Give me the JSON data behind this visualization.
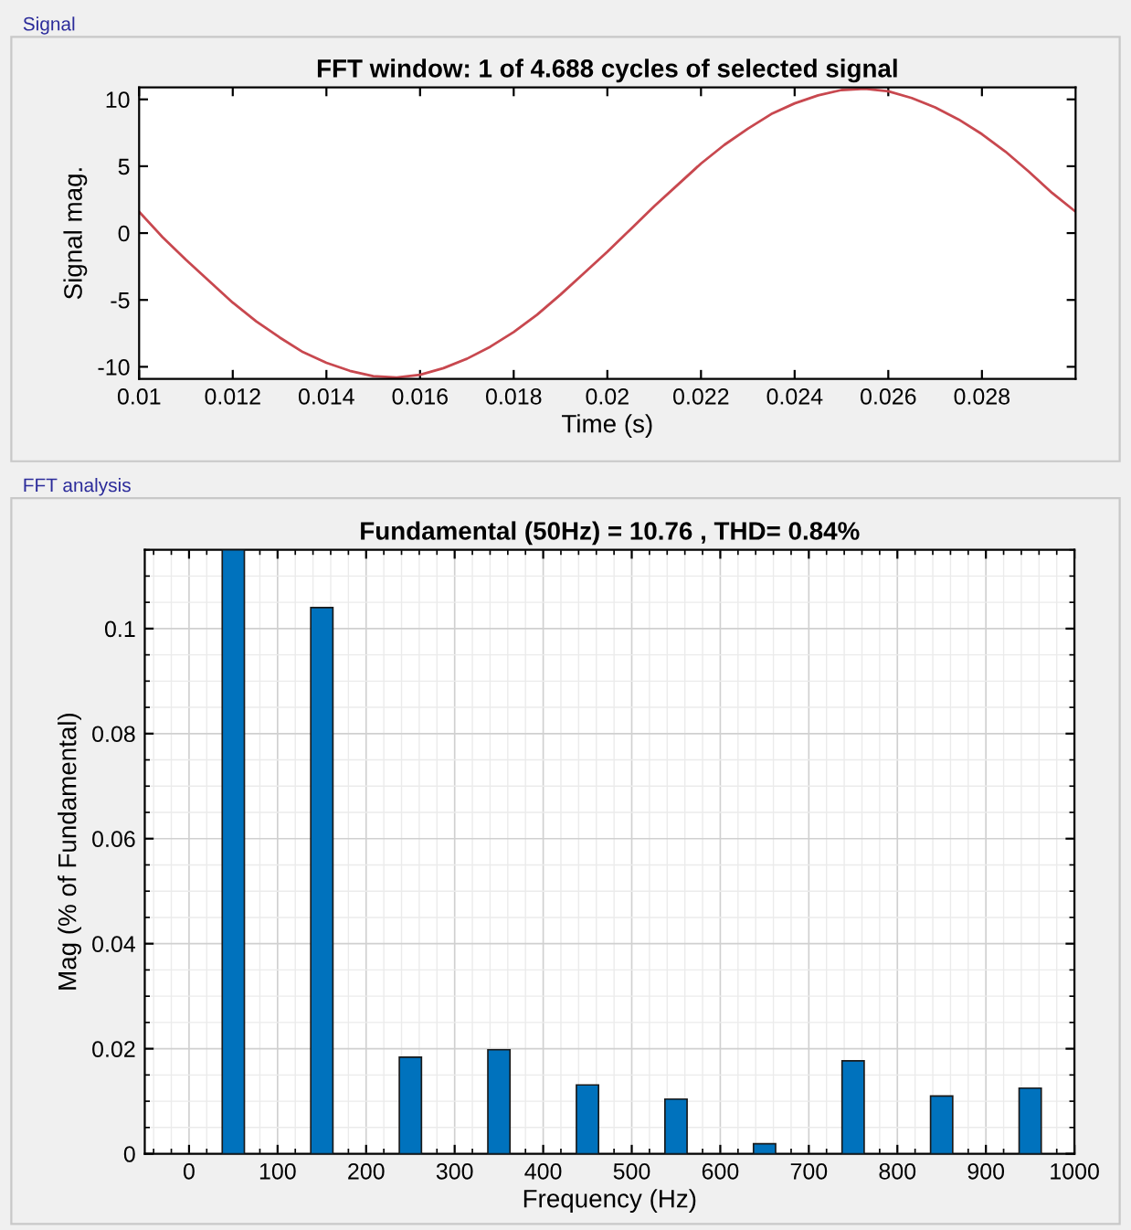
{
  "chart_data": [
    {
      "type": "line",
      "title": "FFT window: 1 of 4.688 cycles of selected signal",
      "xlabel": "Time (s)",
      "ylabel": "Signal mag.",
      "annotations": [
        "Signal"
      ],
      "x": [
        0.01,
        0.0105,
        0.011,
        0.0115,
        0.012,
        0.0125,
        0.013,
        0.0135,
        0.014,
        0.0145,
        0.015,
        0.0155,
        0.016,
        0.0165,
        0.017,
        0.0175,
        0.018,
        0.0185,
        0.019,
        0.0195,
        0.02,
        0.0205,
        0.021,
        0.0215,
        0.022,
        0.0225,
        0.023,
        0.0235,
        0.024,
        0.0245,
        0.025,
        0.0255,
        0.026,
        0.0265,
        0.027,
        0.0275,
        0.028,
        0.0285,
        0.029,
        0.0295,
        0.03
      ],
      "values": [
        1.6,
        -0.3,
        -2.0,
        -3.6,
        -5.2,
        -6.6,
        -7.8,
        -8.9,
        -9.7,
        -10.3,
        -10.7,
        -10.8,
        -10.6,
        -10.1,
        -9.4,
        -8.5,
        -7.4,
        -6.1,
        -4.6,
        -3.0,
        -1.4,
        0.3,
        2.0,
        3.6,
        5.2,
        6.6,
        7.8,
        8.9,
        9.7,
        10.3,
        10.7,
        10.8,
        10.6,
        10.1,
        9.4,
        8.5,
        7.4,
        6.1,
        4.6,
        3.0,
        1.6
      ],
      "color": "#c8484f",
      "xlim": [
        0.01,
        0.03
      ],
      "ylim": [
        -10.9,
        10.9
      ],
      "xticks": [
        0.01,
        0.012,
        0.014,
        0.016,
        0.018,
        0.02,
        0.022,
        0.024,
        0.026,
        0.028
      ],
      "yticks": [
        -10,
        -5,
        0,
        5,
        10
      ],
      "grid": false
    },
    {
      "type": "bar",
      "title": "Fundamental (50Hz) = 10.76 , THD= 0.84%",
      "xlabel": "Frequency (Hz)",
      "ylabel": "Mag (% of Fundamental)",
      "annotations": [
        "FFT analysis"
      ],
      "x": [
        50,
        150,
        250,
        350,
        450,
        550,
        650,
        750,
        850,
        950
      ],
      "values": [
        0.115,
        0.104,
        0.0184,
        0.0198,
        0.0131,
        0.0104,
        0.0019,
        0.0177,
        0.011,
        0.0125
      ],
      "color": "#0072bd",
      "xlim": [
        -50,
        1000
      ],
      "ylim": [
        0,
        0.115
      ],
      "xticks": [
        0,
        100,
        200,
        300,
        400,
        500,
        600,
        700,
        800,
        900,
        1000
      ],
      "yticks": [
        0,
        0.02,
        0.04,
        0.06,
        0.08,
        0.1
      ],
      "grid": true
    }
  ]
}
